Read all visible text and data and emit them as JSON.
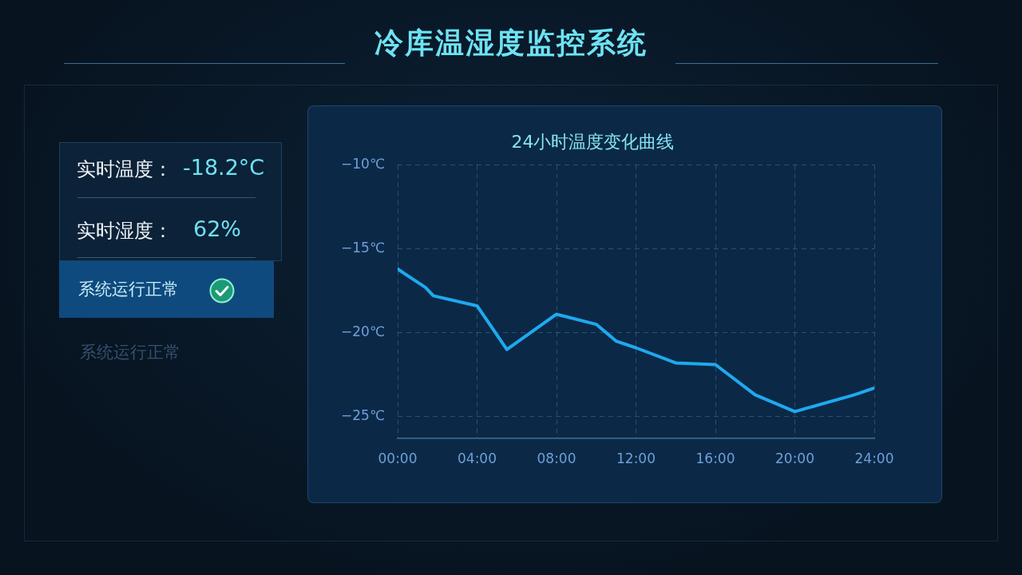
{
  "chart_data": {
    "type": "line",
    "title": "冷库温湿度监控系统",
    "subtitle": "24小时温度变化曲线",
    "x": [
      0,
      0.5,
      1.4,
      1.8,
      4,
      5.5,
      8,
      10,
      11,
      12,
      14,
      16,
      18,
      20,
      23,
      24
    ],
    "values": [
      -16.2,
      -16.6,
      -17.3,
      -17.8,
      -18.4,
      -21.0,
      -18.9,
      -19.5,
      -20.5,
      -20.9,
      -21.8,
      -21.9,
      -23.7,
      -24.7,
      -23.7,
      -23.3
    ],
    "color": "#1fa9ee",
    "xlim": [
      0,
      24
    ],
    "xticks": [
      {
        "value": 0,
        "label": "00:00"
      },
      {
        "value": 4,
        "label": "04:00"
      },
      {
        "value": 8,
        "label": "08:00"
      },
      {
        "value": 12,
        "label": "12:00"
      },
      {
        "value": 16,
        "label": "16:00"
      },
      {
        "value": 20,
        "label": "20:00"
      },
      {
        "value": 24,
        "label": "24:00"
      }
    ],
    "ylim": [
      -26.3,
      -10
    ],
    "yticks": [
      {
        "value": -10,
        "label": "−10℃"
      },
      {
        "value": -15,
        "label": "−15℃"
      },
      {
        "value": -20,
        "label": "−20℃"
      },
      {
        "value": -25,
        "label": "−25℃"
      }
    ],
    "grid": true,
    "marker": "none",
    "line_style": "solid",
    "annotations": [
      "实时温度：",
      "-18.2°C",
      "实时湿度：",
      "62%",
      "系统运行正常",
      "系统运行正常"
    ]
  }
}
